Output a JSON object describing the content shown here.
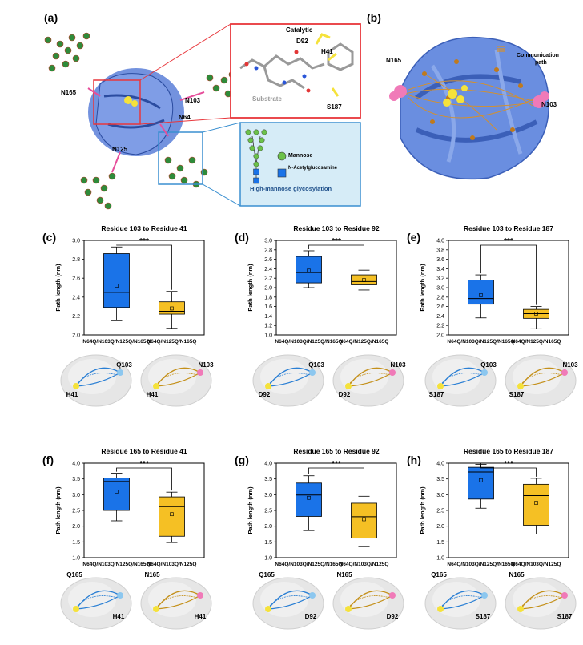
{
  "figure": {
    "panel_labels": [
      "(a)",
      "(b)",
      "(c)",
      "(d)",
      "(e)",
      "(f)",
      "(g)",
      "(h)"
    ]
  },
  "panel_a": {
    "residues": [
      "N165",
      "N103",
      "N64",
      "N125"
    ],
    "inset_top": {
      "catalytic_label": "Catalytic",
      "residues": [
        "D92",
        "H41",
        "S187"
      ],
      "substrate_label": "Substrate"
    },
    "legend": {
      "mannose": "Mannose",
      "glcnac": "N-Acetylglucosamine",
      "caption": "High-mannose glycosylation"
    }
  },
  "panel_b": {
    "residues": [
      "N165",
      "N103"
    ],
    "path_label_1": "Communication",
    "path_label_2": "path"
  },
  "colors": {
    "protein": "#5b7fd8",
    "mutant_blue": "#1a73e8",
    "wild_gold": "#f5c024",
    "frame_red": "#e8363b",
    "frame_blue": "#3a8fd0",
    "inset_bg": "#d6ecf7",
    "stem_magenta": "#e64f9b"
  },
  "chart_data": [
    {
      "type": "box",
      "panel": "(c)",
      "title": "Residue 103 to Residue 41",
      "ylabel": "Path length (nm)",
      "ylim": [
        2.0,
        3.0
      ],
      "yticks": [
        "2.0",
        "2.2",
        "2.4",
        "2.6",
        "2.8",
        "3.0"
      ],
      "categories": [
        "N64Q/N103Q/N125Q/N165Q",
        "N64Q/N125Q/N165Q"
      ],
      "boxes": [
        {
          "whisker_low": 2.15,
          "q1": 2.29,
          "median": 2.45,
          "q3": 2.86,
          "whisker_high": 2.93,
          "mean": 2.52
        },
        {
          "whisker_low": 2.07,
          "q1": 2.22,
          "median": 2.25,
          "q3": 2.35,
          "whisker_high": 2.46,
          "mean": 2.28
        }
      ],
      "significance": "***",
      "structure_labels": [
        {
          "text": "Q103"
        },
        {
          "text": "H41"
        },
        {
          "text": "N103"
        },
        {
          "text": "H41"
        }
      ]
    },
    {
      "type": "box",
      "panel": "(d)",
      "title": "Residue 103 to Residue 92",
      "ylabel": "Path length (nm)",
      "ylim": [
        1.0,
        3.0
      ],
      "yticks": [
        "1.0",
        "1.2",
        "1.4",
        "1.6",
        "1.8",
        "2.0",
        "2.2",
        "2.4",
        "2.6",
        "2.8",
        "3.0"
      ],
      "categories": [
        "N64Q/N103Q/N125Q/N165Q",
        "N64Q/N125Q/N165Q"
      ],
      "boxes": [
        {
          "whisker_low": 2.0,
          "q1": 2.1,
          "median": 2.32,
          "q3": 2.66,
          "whisker_high": 2.78,
          "mean": 2.36
        },
        {
          "whisker_low": 1.95,
          "q1": 2.06,
          "median": 2.13,
          "q3": 2.27,
          "whisker_high": 2.37,
          "mean": 2.16
        }
      ],
      "significance": "***",
      "structure_labels": [
        {
          "text": "Q103"
        },
        {
          "text": "D92"
        },
        {
          "text": "N103"
        },
        {
          "text": "D92"
        }
      ]
    },
    {
      "type": "box",
      "panel": "(e)",
      "title": "Residue 103 to Residue 187",
      "ylabel": "Path length (nm)",
      "ylim": [
        2.0,
        4.0
      ],
      "yticks": [
        "2.0",
        "2.2",
        "2.4",
        "2.6",
        "2.8",
        "3.0",
        "3.2",
        "3.4",
        "3.6",
        "3.8",
        "4.0"
      ],
      "categories": [
        "N64Q/N103Q/N125Q/N165Q",
        "N64Q/N125Q/N165Q"
      ],
      "boxes": [
        {
          "whisker_low": 2.36,
          "q1": 2.65,
          "median": 2.77,
          "q3": 3.16,
          "whisker_high": 3.27,
          "mean": 2.84
        },
        {
          "whisker_low": 2.13,
          "q1": 2.35,
          "median": 2.45,
          "q3": 2.54,
          "whisker_high": 2.6,
          "mean": 2.45
        }
      ],
      "significance": "***",
      "structure_labels": [
        {
          "text": "Q103"
        },
        {
          "text": "S187"
        },
        {
          "text": "N103"
        },
        {
          "text": "S187"
        }
      ]
    },
    {
      "type": "box",
      "panel": "(f)",
      "title": "Residue 165 to Residue 41",
      "ylabel": "Path length (nm)",
      "ylim": [
        1.0,
        4.0
      ],
      "yticks": [
        "1.0",
        "1.5",
        "2.0",
        "2.5",
        "3.0",
        "3.5",
        "4.0"
      ],
      "categories": [
        "N64Q/N103Q/N125Q/N165Q",
        "N64Q/N103Q/N125Q"
      ],
      "boxes": [
        {
          "whisker_low": 2.17,
          "q1": 2.5,
          "median": 3.42,
          "q3": 3.53,
          "whisker_high": 3.68,
          "mean": 3.1
        },
        {
          "whisker_low": 1.48,
          "q1": 1.68,
          "median": 2.62,
          "q3": 2.93,
          "whisker_high": 3.08,
          "mean": 2.38
        }
      ],
      "significance": "***",
      "structure_labels": [
        {
          "text": "Q165"
        },
        {
          "text": "H41"
        },
        {
          "text": "N165"
        },
        {
          "text": "H41"
        }
      ]
    },
    {
      "type": "box",
      "panel": "(g)",
      "title": "Residue 165 to Residue 92",
      "ylabel": "Path length (nm)",
      "ylim": [
        1.0,
        4.0
      ],
      "yticks": [
        "1.0",
        "1.5",
        "2.0",
        "2.5",
        "3.0",
        "3.5",
        "4.0"
      ],
      "categories": [
        "N64Q/N103Q/N125Q/N165Q",
        "N64Q/N103Q/N125Q"
      ],
      "boxes": [
        {
          "whisker_low": 1.86,
          "q1": 2.31,
          "median": 2.99,
          "q3": 3.37,
          "whisker_high": 3.6,
          "mean": 2.9
        },
        {
          "whisker_low": 1.35,
          "q1": 1.62,
          "median": 2.3,
          "q3": 2.73,
          "whisker_high": 2.95,
          "mean": 2.22
        }
      ],
      "significance": "***",
      "structure_labels": [
        {
          "text": "Q165"
        },
        {
          "text": "D92"
        },
        {
          "text": "N165"
        },
        {
          "text": "D92"
        }
      ]
    },
    {
      "type": "box",
      "panel": "(h)",
      "title": "Residue 165 to Residue 187",
      "ylabel": "Path length (nm)",
      "ylim": [
        1.0,
        4.0
      ],
      "yticks": [
        "1.0",
        "1.5",
        "2.0",
        "2.5",
        "3.0",
        "3.5",
        "4.0"
      ],
      "categories": [
        "N64Q/N103Q/N125Q/N165Q",
        "N64Q/N103Q/N125Q"
      ],
      "boxes": [
        {
          "whisker_low": 2.57,
          "q1": 2.86,
          "median": 3.72,
          "q3": 3.87,
          "whisker_high": 3.96,
          "mean": 3.46
        },
        {
          "whisker_low": 1.75,
          "q1": 2.03,
          "median": 2.97,
          "q3": 3.33,
          "whisker_high": 3.52,
          "mean": 2.74
        }
      ],
      "significance": "***",
      "structure_labels": [
        {
          "text": "Q165"
        },
        {
          "text": "S187"
        },
        {
          "text": "N165"
        },
        {
          "text": "S187"
        }
      ]
    }
  ]
}
